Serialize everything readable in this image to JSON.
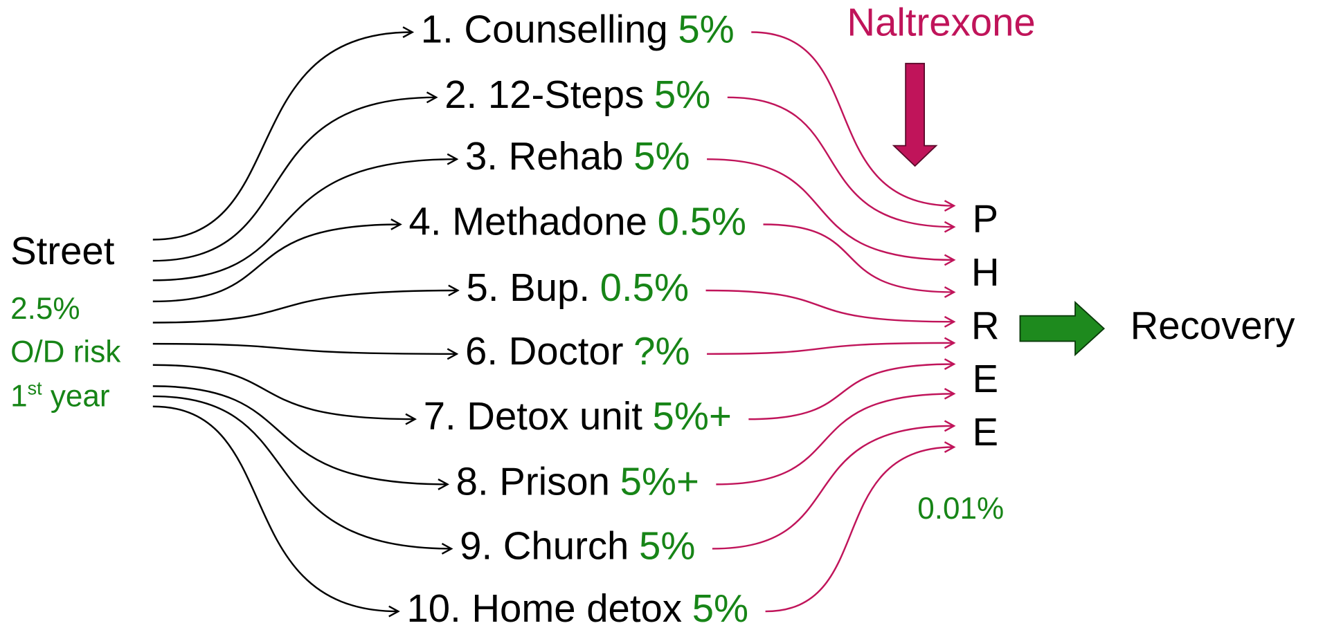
{
  "source": {
    "label": "Street",
    "risk": [
      "2.5%",
      "O/D risk"
    ],
    "year": {
      "number": "1",
      "suffix": "st",
      "rest": " year"
    }
  },
  "treatments": [
    {
      "name": "1. Counselling",
      "rate": "5%"
    },
    {
      "name": "2. 12-Steps",
      "rate": "5%"
    },
    {
      "name": "3. Rehab",
      "rate": "5%"
    },
    {
      "name": "4. Methadone",
      "rate": "0.5%"
    },
    {
      "name": "5. Bup.",
      "rate": "0.5%"
    },
    {
      "name": "6. Doctor",
      "rate": "?%"
    },
    {
      "name": "7. Detox unit",
      "rate": "5%+"
    },
    {
      "name": "8. Prison",
      "rate": "5%+"
    },
    {
      "name": "9. Church",
      "rate": "5%"
    },
    {
      "name": "10. Home detox",
      "rate": "5%"
    }
  ],
  "target": {
    "letters": [
      "P",
      "H",
      "R",
      "E",
      "E"
    ],
    "risk": "0.01%"
  },
  "naltrexone": "Naltrexone",
  "outcome": "Recovery"
}
